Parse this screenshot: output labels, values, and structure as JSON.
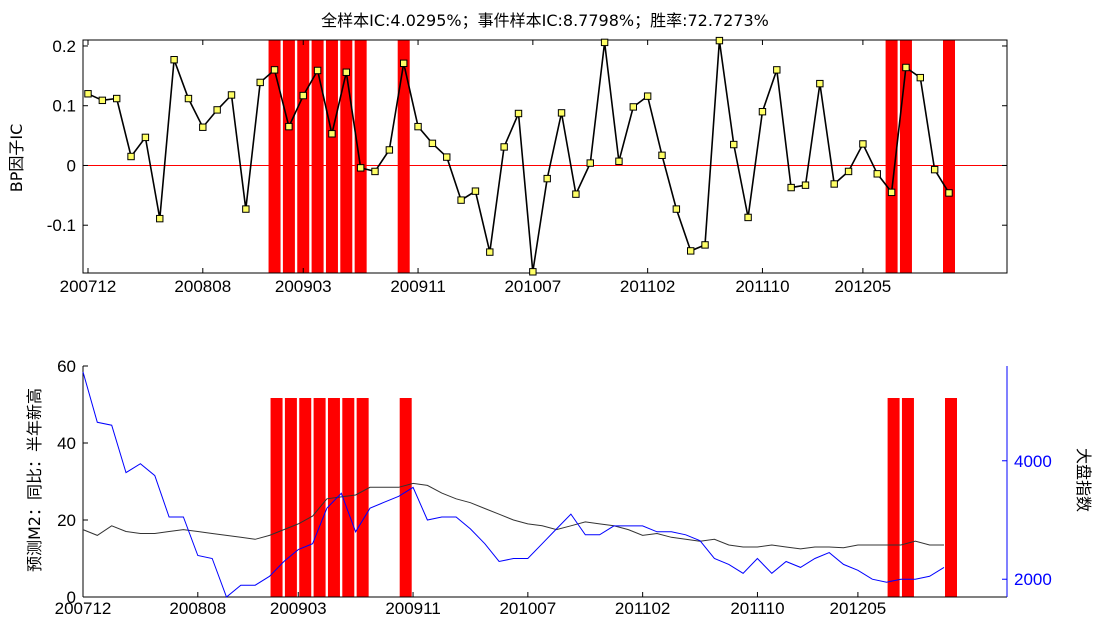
{
  "colors": {
    "highlight": "#ff0000",
    "ic_line": "#000000",
    "ic_marker": "#ffff66",
    "zero_line": "#ff0000",
    "m2_line": "#333333",
    "index_line": "#0000ff",
    "right_axis": "#0000ff"
  },
  "chart_data": [
    {
      "type": "line",
      "title": "全样本IC:4.0295%；事件样本IC:8.7798%；胜率:72.7273%",
      "xlabel": "",
      "ylabel": "BP因子IC",
      "x_tick_labels": [
        "200712",
        "200808",
        "200903",
        "200911",
        "201007",
        "201102",
        "201110",
        "201205"
      ],
      "x_tick_index": [
        0,
        8,
        15,
        23,
        31,
        39,
        47,
        54
      ],
      "ylim": [
        -0.18,
        0.21
      ],
      "y_ticks": [
        -0.1,
        0,
        0.1,
        0.2
      ],
      "y_tick_labels": [
        "-0.1",
        "0",
        "0.1",
        "0.2"
      ],
      "zero_line": 0,
      "highlight_months_index": [
        13,
        14,
        15,
        16,
        17,
        18,
        19,
        22,
        56,
        57,
        60
      ],
      "series": [
        {
          "values": [
            0.12,
            0.109,
            0.112,
            0.015,
            0.047,
            -0.089,
            0.177,
            0.112,
            0.064,
            0.093,
            0.118,
            -0.073,
            0.139,
            0.16,
            0.065,
            0.117,
            0.159,
            0.053,
            0.156,
            -0.004,
            -0.01,
            0.026,
            0.171,
            0.065,
            0.037,
            0.014,
            -0.058,
            -0.043,
            -0.145,
            0.031,
            0.087,
            -0.178,
            -0.022,
            0.088,
            -0.048,
            0.004,
            0.206,
            0.007,
            0.098,
            0.116,
            0.017,
            -0.073,
            -0.143,
            -0.133,
            0.209,
            0.035,
            -0.087,
            0.09,
            0.16,
            -0.037,
            -0.033,
            0.137,
            -0.031,
            -0.01,
            0.036,
            -0.014,
            -0.045,
            0.164,
            0.147,
            -0.007,
            -0.046
          ]
        }
      ]
    },
    {
      "type": "line",
      "xlabel": "",
      "ylabel": "预测M2：同比：半年新高",
      "y2label": "大盘指数",
      "x_tick_labels": [
        "200712",
        "200808",
        "200903",
        "200911",
        "201007",
        "201102",
        "201110",
        "201205"
      ],
      "x_tick_index": [
        0,
        8,
        15,
        23,
        31,
        39,
        47,
        54
      ],
      "ylim": [
        0,
        60
      ],
      "y_ticks": [
        0,
        20,
        40,
        60
      ],
      "y_tick_labels": [
        "0",
        "20",
        "40",
        "60"
      ],
      "y2lim": [
        1700,
        5600
      ],
      "y2_ticks": [
        2000,
        4000
      ],
      "y2_tick_labels": [
        "2000",
        "4000"
      ],
      "highlight_months_index": [
        13,
        14,
        15,
        16,
        17,
        18,
        19,
        22,
        56,
        57,
        60
      ],
      "series": [
        {
          "axis": "left",
          "values": [
            17.5,
            16.0,
            18.5,
            17.0,
            16.5,
            16.5,
            17.0,
            17.5,
            17.0,
            16.5,
            16.0,
            15.5,
            15.0,
            16.0,
            17.5,
            19.0,
            21.0,
            25.5,
            26.0,
            26.5,
            28.5,
            28.5,
            28.5,
            29.5,
            29.0,
            27.0,
            25.5,
            24.5,
            23.0,
            21.5,
            20.0,
            19.0,
            18.5,
            17.5,
            18.5,
            19.5,
            19.0,
            18.5,
            17.5,
            16.0,
            16.5,
            15.5,
            15.0,
            14.5,
            15.0,
            13.5,
            13.0,
            13.0,
            13.5,
            13.0,
            12.5,
            13.0,
            13.0,
            12.8,
            13.5,
            13.5,
            13.5,
            13.5,
            14.5,
            13.5,
            13.5
          ]
        },
        {
          "axis": "right",
          "values": [
            5500,
            4650,
            4600,
            3800,
            3950,
            3750,
            3050,
            3050,
            2400,
            2350,
            1700,
            1900,
            1900,
            2050,
            2300,
            2500,
            2600,
            3200,
            3450,
            2800,
            3200,
            3300,
            3400,
            3550,
            3000,
            3050,
            3050,
            2850,
            2600,
            2300,
            2350,
            2350,
            2600,
            2850,
            3100,
            2750,
            2750,
            2900,
            2900,
            2900,
            2800,
            2800,
            2750,
            2650,
            2350,
            2250,
            2100,
            2350,
            2100,
            2300,
            2200,
            2350,
            2450,
            2250,
            2150,
            2000,
            1950,
            2000,
            2000,
            2050,
            2200
          ]
        }
      ]
    }
  ]
}
